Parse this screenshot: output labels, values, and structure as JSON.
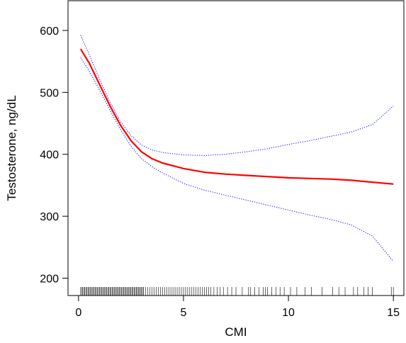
{
  "chart_data": {
    "type": "line",
    "xlabel": "CMI",
    "ylabel": "Testosterone, ng/dL",
    "xlim": [
      -0.5,
      15.5
    ],
    "ylim": [
      172,
      648
    ],
    "xticks": [
      0,
      5,
      10,
      15
    ],
    "yticks": [
      200,
      300,
      400,
      500,
      600
    ],
    "grid": false,
    "legend": "none",
    "colors": {
      "fit": "#ff0000",
      "ci": "#0000ff",
      "rug": "#000000"
    },
    "series": [
      {
        "role": "fit",
        "style": "solid",
        "x": [
          0.1,
          0.5,
          1,
          1.5,
          2,
          2.5,
          3,
          3.5,
          4,
          5,
          6,
          7,
          8,
          9,
          10,
          11,
          12,
          13,
          14,
          15
        ],
        "y": [
          570,
          548,
          513,
          478,
          447,
          422,
          404,
          393,
          386,
          377,
          371,
          368,
          366,
          364,
          362,
          361,
          360,
          358,
          355,
          352
        ]
      },
      {
        "role": "ci-upper",
        "style": "dotted",
        "x": [
          0.1,
          0.5,
          1,
          1.5,
          2,
          2.5,
          3,
          3.5,
          4,
          5,
          6,
          7,
          8,
          9,
          10,
          11,
          12,
          13,
          14,
          15
        ],
        "y": [
          592,
          562,
          522,
          484,
          453,
          430,
          415,
          407,
          403,
          399,
          398,
          400,
          404,
          409,
          416,
          422,
          429,
          436,
          448,
          478
        ]
      },
      {
        "role": "ci-lower",
        "style": "dotted",
        "x": [
          0.1,
          0.5,
          1,
          1.5,
          2,
          2.5,
          3,
          3.5,
          4,
          5,
          6,
          7,
          8,
          9,
          10,
          11,
          12,
          13,
          14,
          15
        ],
        "y": [
          556,
          535,
          504,
          471,
          440,
          413,
          393,
          380,
          370,
          353,
          342,
          334,
          326,
          318,
          310,
          302,
          295,
          286,
          268,
          227
        ]
      }
    ],
    "rug": [
      0.1,
      0.15,
      0.2,
      0.25,
      0.3,
      0.35,
      0.4,
      0.45,
      0.5,
      0.55,
      0.6,
      0.65,
      0.7,
      0.75,
      0.8,
      0.85,
      0.9,
      0.95,
      1.0,
      1.05,
      1.1,
      1.15,
      1.2,
      1.25,
      1.3,
      1.35,
      1.4,
      1.45,
      1.5,
      1.55,
      1.6,
      1.65,
      1.7,
      1.75,
      1.8,
      1.85,
      1.9,
      1.95,
      2.0,
      2.05,
      2.1,
      2.15,
      2.2,
      2.25,
      2.3,
      2.35,
      2.4,
      2.45,
      2.5,
      2.55,
      2.6,
      2.65,
      2.7,
      2.75,
      2.8,
      2.85,
      2.9,
      2.95,
      3.0,
      3.05,
      3.1,
      3.2,
      3.3,
      3.4,
      3.5,
      3.6,
      3.7,
      3.8,
      3.9,
      4.0,
      4.1,
      4.2,
      4.3,
      4.4,
      4.5,
      4.6,
      4.7,
      4.8,
      4.9,
      5.0,
      5.1,
      5.2,
      5.3,
      5.4,
      5.5,
      5.6,
      5.7,
      5.8,
      5.9,
      6.0,
      6.1,
      6.2,
      6.3,
      6.45,
      6.6,
      6.75,
      6.9,
      7.1,
      7.3,
      7.5,
      7.8,
      8.1,
      8.2,
      8.4,
      8.6,
      8.8,
      8.9,
      9.0,
      9.2,
      9.4,
      9.6,
      9.8,
      10.1,
      10.4,
      10.8,
      11.1,
      11.6,
      12.1,
      12.4,
      12.7,
      13.1,
      13.3,
      13.6,
      13.8,
      14.0,
      14.9,
      15.0
    ]
  }
}
